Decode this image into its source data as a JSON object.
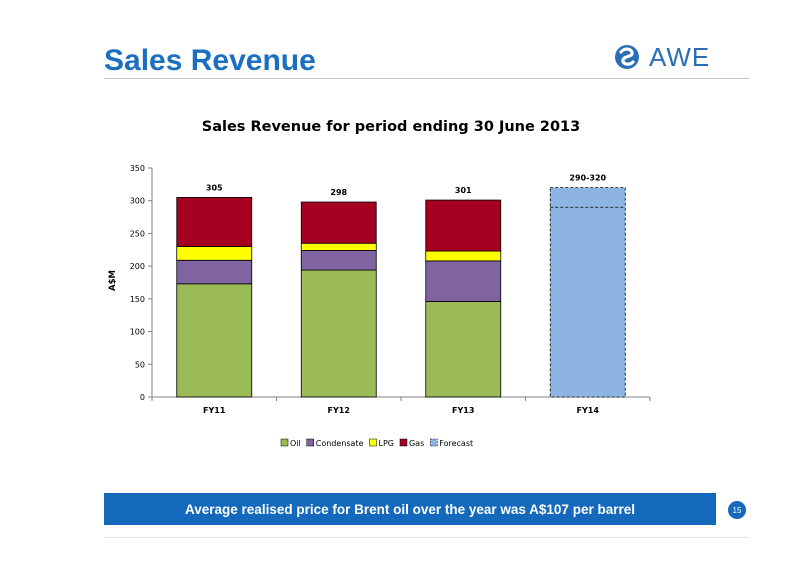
{
  "slide": {
    "title": "Sales Revenue",
    "logo_text": "AWE",
    "banner": "Average realised price for Brent oil over the year was A$107 per barrel",
    "page_number": "15"
  },
  "colors": {
    "title": "#1a6fc0",
    "banner": "#1469bd",
    "oil": "#9bbb59",
    "condensate": "#8064a2",
    "lpg": "#ffff00",
    "gas": "#a50021",
    "forecast": "#8db4e2"
  },
  "chart_data": {
    "type": "bar",
    "stacked": true,
    "title": "Sales Revenue for period ending 30 June 2013",
    "ylabel": "A$M",
    "xlabel": "",
    "ylim": [
      0,
      350
    ],
    "yticks": [
      0,
      50,
      100,
      150,
      200,
      250,
      300,
      350
    ],
    "categories": [
      "FY11",
      "FY12",
      "FY13",
      "FY14"
    ],
    "series": [
      {
        "name": "Oil",
        "values": [
          173,
          194,
          146,
          0
        ]
      },
      {
        "name": "Condensate",
        "values": [
          36,
          30,
          62,
          0
        ]
      },
      {
        "name": "LPG",
        "values": [
          21,
          11,
          15,
          0
        ]
      },
      {
        "name": "Gas",
        "values": [
          75,
          63,
          78,
          0
        ]
      },
      {
        "name": "Forecast",
        "values": [
          0,
          0,
          0,
          320
        ],
        "range_low": 290
      }
    ],
    "totals_labels": [
      "305",
      "298",
      "301",
      "290-320"
    ],
    "legend_position": "bottom",
    "grid": false
  }
}
